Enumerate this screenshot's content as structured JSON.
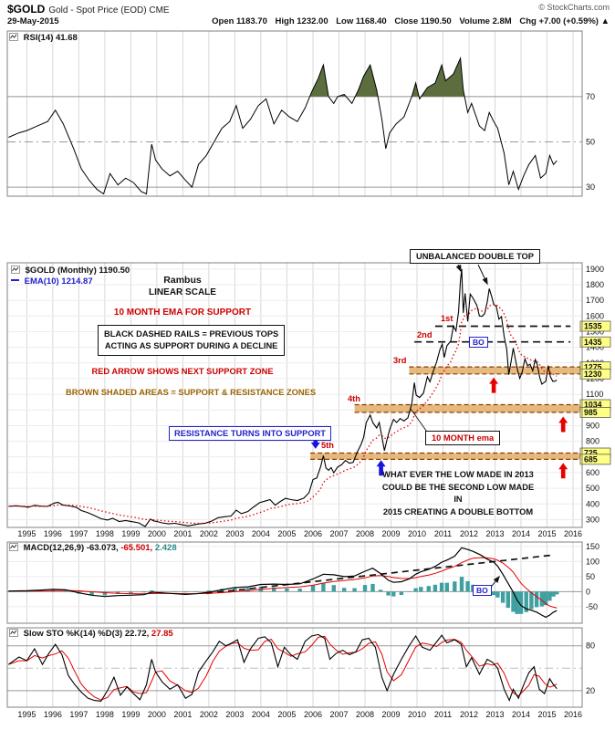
{
  "header": {
    "symbol": "$GOLD",
    "description": "Gold - Spot Price (EOD) CME",
    "copyright": "© StockCharts.com",
    "date": "29-May-2015",
    "quote": {
      "open_label": "Open",
      "open": "1183.70",
      "high_label": "High",
      "high": "1232.00",
      "low_label": "Low",
      "low": "1168.40",
      "close_label": "Close",
      "close": "1190.50",
      "volume_label": "Volume",
      "volume": "2.8M",
      "chg_label": "Chg",
      "chg": "+7.00 (+0.59%) ▲"
    }
  },
  "legends": {
    "rsi": "RSI(14) 41.68",
    "price_main": "$GOLD (Monthly) 1190.50",
    "price_ema": "EMA(10) 1214.87",
    "macd_label": "MACD(12,26,9)",
    "macd_value": "-63.073,",
    "macd_signal": "-65.501,",
    "macd_hist": "2.428",
    "sto_label": "Slow STO %K(14) %D(3)",
    "sto_k": "22.72,",
    "sto_d": "27.85"
  },
  "annotations": {
    "rambus": "Rambus",
    "linear_scale": "LINEAR SCALE",
    "ema_support": "10 MONTH EMA FOR SUPPORT",
    "rails_note_1": "BLACK DASHED RAILS = PREVIOUS TOPS",
    "rails_note_2": "ACTING AS SUPPORT DURING A DECLINE",
    "red_arrow_note": "RED ARROW SHOWS NEXT SUPPORT ZONE",
    "brown_note": "BROWN SHADED AREAS = SUPPORT & RESISTANCE ZONES",
    "double_top": "UNBALANCED DOUBLE TOP",
    "resistance_support": "RESISTANCE TURNS INTO SUPPORT",
    "ema_callout": "10 MONTH ema",
    "low_note_1": "WHAT EVER THE LOW MADE IN 2013",
    "low_note_2": "COULD BE THE SECOND LOW MADE IN",
    "low_note_3": "2015 CREATING A DOUBLE BOTTOM",
    "bo": "BO",
    "rail_labels": [
      "1st",
      "2nd",
      "3rd",
      "4th",
      "5th"
    ]
  },
  "colors": {
    "price_line": "#000000",
    "ema_line": "#e60000",
    "rsi_line": "#000000",
    "rsi_fill": "#5c6e3e",
    "macd_line": "#000000",
    "signal_line": "#e60000",
    "histogram": "#40a0a0",
    "zone_fill": "#e0a95e",
    "zone_border": "#8b3a00",
    "highlight_bg": "#ffff85",
    "annotation_red": "#cc0000",
    "annotation_blue": "#2222cc",
    "annotation_brown": "#9a6300"
  },
  "chart_data": {
    "x_axis": {
      "xlim": [
        1994.25,
        2016.35
      ],
      "years": [
        1995,
        1996,
        1997,
        1998,
        1999,
        2000,
        2001,
        2002,
        2003,
        2004,
        2005,
        2006,
        2007,
        2008,
        2009,
        2010,
        2011,
        2012,
        2013,
        2014,
        2015,
        2016
      ]
    },
    "rsi": {
      "type": "line",
      "label": "RSI(14)",
      "current": 41.68,
      "ylim": [
        26,
        99
      ],
      "yticks": [
        70,
        50,
        30
      ],
      "fill_above": 70,
      "x": [
        1994.3,
        1994.7,
        1995.0,
        1995.4,
        1995.8,
        1996.1,
        1996.4,
        1996.8,
        1997.1,
        1997.4,
        1997.7,
        1997.95,
        1998.2,
        1998.5,
        1998.8,
        1999.1,
        1999.4,
        1999.6,
        1999.8,
        1999.95,
        2000.2,
        2000.5,
        2000.8,
        2001.1,
        2001.35,
        2001.6,
        2001.9,
        2002.2,
        2002.5,
        2002.8,
        2003.05,
        2003.3,
        2003.6,
        2003.9,
        2004.2,
        2004.5,
        2004.8,
        2005.1,
        2005.4,
        2005.7,
        2005.95,
        2006.2,
        2006.4,
        2006.6,
        2006.8,
        2006.95,
        2007.2,
        2007.5,
        2007.75,
        2007.95,
        2008.2,
        2008.45,
        2008.65,
        2008.8,
        2008.95,
        2009.2,
        2009.5,
        2009.8,
        2009.95,
        2010.1,
        2010.4,
        2010.7,
        2010.95,
        2011.1,
        2011.4,
        2011.67,
        2011.78,
        2011.95,
        2012.1,
        2012.4,
        2012.6,
        2012.78,
        2012.95,
        2013.1,
        2013.35,
        2013.53,
        2013.7,
        2013.9,
        2014.1,
        2014.3,
        2014.55,
        2014.75,
        2014.95,
        2015.1,
        2015.25,
        2015.38
      ],
      "values": [
        52,
        54,
        55,
        57,
        59,
        64,
        58,
        47,
        38,
        33,
        29,
        27,
        36,
        31,
        34,
        32,
        28,
        27,
        49,
        42,
        38,
        35,
        37,
        33,
        30,
        40,
        44,
        50,
        56,
        59,
        66,
        56,
        60,
        66,
        69,
        58,
        64,
        61,
        59,
        65,
        72,
        78,
        84,
        70,
        67,
        70,
        71,
        67,
        73,
        79,
        84,
        73,
        60,
        47,
        54,
        58,
        61,
        70,
        76,
        69,
        74,
        76,
        84,
        77,
        80,
        87,
        73,
        63,
        67,
        57,
        55,
        63,
        59,
        56,
        45,
        31,
        37,
        29,
        35,
        40,
        44,
        34,
        36,
        44,
        40,
        41.68
      ]
    },
    "price": {
      "type": "line",
      "label": "$GOLD (Monthly)",
      "current": 1190.5,
      "ema_period": 10,
      "ylim": [
        250,
        1940
      ],
      "yticks": [
        1900,
        1800,
        1700,
        1600,
        1500,
        1400,
        1300,
        1200,
        1100,
        1000,
        900,
        800,
        700,
        600,
        500,
        400,
        300
      ],
      "highlight_labels": [
        1535,
        1435,
        1275,
        1230,
        1034,
        985,
        725,
        685
      ],
      "support_zones": [
        {
          "low": 1230,
          "high": 1275,
          "from_x": 2009.7
        },
        {
          "low": 985,
          "high": 1034,
          "from_x": 2007.6
        },
        {
          "low": 685,
          "high": 725,
          "from_x": 2005.9
        }
      ],
      "rails": [
        {
          "level": 1535,
          "from_x": 2010.7,
          "to_x": 2015.9
        },
        {
          "level": 1435,
          "from_x": 2009.9,
          "to_x": 2015.9
        }
      ],
      "x": [
        1994.3,
        1994.6,
        1994.9,
        1995.05,
        1995.3,
        1995.55,
        1995.8,
        1996.05,
        1996.2,
        1996.4,
        1996.65,
        1996.9,
        1997.1,
        1997.35,
        1997.6,
        1997.85,
        1998.1,
        1998.3,
        1998.55,
        1998.8,
        1999.05,
        1999.3,
        1999.55,
        1999.75,
        1999.87,
        2000.0,
        2000.2,
        2000.45,
        2000.7,
        2000.95,
        2001.2,
        2001.4,
        2001.6,
        2001.85,
        2002.1,
        2002.35,
        2002.6,
        2002.85,
        2003.05,
        2003.25,
        2003.5,
        2003.7,
        2003.95,
        2004.2,
        2004.35,
        2004.55,
        2004.75,
        2004.95,
        2005.15,
        2005.4,
        2005.65,
        2005.85,
        2006.0,
        2006.15,
        2006.3,
        2006.4,
        2006.5,
        2006.6,
        2006.7,
        2006.8,
        2006.95,
        2007.1,
        2007.25,
        2007.4,
        2007.55,
        2007.7,
        2007.85,
        2007.95,
        2008.05,
        2008.2,
        2008.3,
        2008.45,
        2008.55,
        2008.65,
        2008.75,
        2008.85,
        2008.95,
        2009.1,
        2009.22,
        2009.35,
        2009.5,
        2009.65,
        2009.8,
        2009.9,
        2009.97,
        2010.1,
        2010.25,
        2010.4,
        2010.5,
        2010.62,
        2010.75,
        2010.88,
        2010.97,
        2011.05,
        2011.15,
        2011.3,
        2011.4,
        2011.5,
        2011.6,
        2011.67,
        2011.72,
        2011.78,
        2011.85,
        2011.95,
        2012.05,
        2012.15,
        2012.3,
        2012.4,
        2012.5,
        2012.6,
        2012.7,
        2012.78,
        2012.88,
        2012.95,
        2013.05,
        2013.15,
        2013.25,
        2013.35,
        2013.45,
        2013.53,
        2013.62,
        2013.7,
        2013.78,
        2013.87,
        2013.95,
        2014.05,
        2014.15,
        2014.25,
        2014.35,
        2014.45,
        2014.55,
        2014.63,
        2014.72,
        2014.8,
        2014.88,
        2014.95,
        2015.05,
        2015.13,
        2015.22,
        2015.3,
        2015.38
      ],
      "close": [
        385,
        388,
        383,
        379,
        391,
        386,
        384,
        405,
        410,
        392,
        387,
        379,
        358,
        344,
        326,
        306,
        297,
        308,
        288,
        294,
        287,
        279,
        256,
        303,
        292,
        288,
        279,
        273,
        276,
        268,
        260,
        266,
        272,
        277,
        290,
        312,
        318,
        323,
        360,
        338,
        352,
        378,
        408,
        420,
        428,
        392,
        416,
        436,
        428,
        422,
        437,
        472,
        556,
        566,
        640,
        708,
        630,
        615,
        632,
        599,
        636,
        650,
        678,
        660,
        666,
        730,
        780,
        825,
        920,
        968,
        920,
        885,
        920,
        830,
        740,
        812,
        875,
        940,
        920,
        945,
        930,
        950,
        1040,
        1175,
        1095,
        1080,
        1108,
        1212,
        1180,
        1245,
        1305,
        1385,
        1420,
        1335,
        1410,
        1440,
        1535,
        1505,
        1630,
        1825,
        1900,
        1620,
        1745,
        1565,
        1740,
        1715,
        1670,
        1600,
        1598,
        1615,
        1690,
        1775,
        1720,
        1675,
        1662,
        1580,
        1597,
        1470,
        1390,
        1225,
        1312,
        1395,
        1327,
        1253,
        1202,
        1245,
        1327,
        1284,
        1292,
        1250,
        1322,
        1285,
        1208,
        1165,
        1175,
        1183,
        1283,
        1213,
        1183,
        1184,
        1190.5
      ]
    },
    "macd": {
      "type": "line",
      "macd_value": -63.073,
      "signal_value": -65.501,
      "hist_value": 2.428,
      "ylim": [
        -105,
        165
      ],
      "yticks": [
        150,
        100,
        50,
        0,
        -50
      ],
      "trendline": {
        "x1": 2001.9,
        "y1": -6,
        "x2": 2015.25,
        "y2": 122
      },
      "x": [
        1994.3,
        1995.0,
        1995.5,
        1996.0,
        1996.5,
        1997.0,
        1997.5,
        1998.0,
        1998.5,
        1999.0,
        1999.5,
        1999.8,
        2000.2,
        2000.7,
        2001.1,
        2001.5,
        2002.0,
        2002.5,
        2003.0,
        2003.5,
        2004.0,
        2004.5,
        2005.0,
        2005.5,
        2006.0,
        2006.4,
        2006.8,
        2007.2,
        2007.6,
        2008.0,
        2008.3,
        2008.6,
        2008.9,
        2009.1,
        2009.4,
        2009.7,
        2009.95,
        2010.15,
        2010.45,
        2010.7,
        2010.95,
        2011.15,
        2011.45,
        2011.72,
        2011.95,
        2012.15,
        2012.45,
        2012.7,
        2012.95,
        2013.1,
        2013.3,
        2013.5,
        2013.7,
        2013.85,
        2014.0,
        2014.2,
        2014.4,
        2014.6,
        2014.8,
        2014.95,
        2015.1,
        2015.25,
        2015.38
      ],
      "values": [
        2,
        3,
        5,
        8,
        6,
        -4,
        -12,
        -16,
        -13,
        -12,
        -10,
        -2,
        -4,
        -7,
        -9,
        -7,
        -2,
        6,
        14,
        16,
        24,
        25,
        24,
        26,
        42,
        58,
        56,
        50,
        52,
        68,
        78,
        60,
        38,
        31,
        33,
        42,
        58,
        66,
        74,
        84,
        98,
        105,
        118,
        146,
        140,
        134,
        122,
        108,
        98,
        85,
        58,
        28,
        -2,
        -28,
        -46,
        -57,
        -62,
        -68,
        -78,
        -85,
        -78,
        -68,
        -63.07
      ]
    },
    "sto": {
      "type": "line",
      "k_value": 22.72,
      "d_value": 27.85,
      "ylim": [
        -2,
        104
      ],
      "yticks": [
        80,
        20
      ],
      "x": [
        1994.3,
        1994.7,
        1995.0,
        1995.3,
        1995.6,
        1995.85,
        1996.1,
        1996.35,
        1996.6,
        1996.85,
        1997.1,
        1997.35,
        1997.6,
        1997.85,
        1998.1,
        1998.35,
        1998.6,
        1998.85,
        1999.1,
        1999.35,
        1999.6,
        1999.8,
        1999.95,
        2000.2,
        2000.5,
        2000.8,
        2001.1,
        2001.35,
        2001.6,
        2001.9,
        2002.15,
        2002.4,
        2002.65,
        2002.9,
        2003.1,
        2003.35,
        2003.6,
        2003.9,
        2004.15,
        2004.4,
        2004.65,
        2004.9,
        2005.15,
        2005.4,
        2005.7,
        2005.95,
        2006.2,
        2006.45,
        2006.65,
        2006.9,
        2007.15,
        2007.4,
        2007.65,
        2007.9,
        2008.15,
        2008.4,
        2008.65,
        2008.85,
        2009.1,
        2009.4,
        2009.7,
        2009.95,
        2010.2,
        2010.5,
        2010.75,
        2010.95,
        2011.15,
        2011.45,
        2011.7,
        2011.9,
        2012.1,
        2012.4,
        2012.7,
        2012.9,
        2013.1,
        2013.35,
        2013.55,
        2013.7,
        2013.9,
        2014.1,
        2014.3,
        2014.5,
        2014.7,
        2014.9,
        2015.1,
        2015.25,
        2015.38
      ],
      "k": [
        55,
        65,
        60,
        76,
        55,
        70,
        82,
        68,
        40,
        28,
        18,
        10,
        7,
        6,
        20,
        38,
        14,
        25,
        16,
        8,
        28,
        62,
        45,
        32,
        22,
        28,
        10,
        15,
        45,
        60,
        72,
        86,
        80,
        84,
        88,
        58,
        76,
        90,
        92,
        84,
        52,
        78,
        68,
        62,
        86,
        93,
        95,
        90,
        62,
        70,
        74,
        68,
        72,
        88,
        90,
        78,
        38,
        20,
        42,
        62,
        80,
        93,
        78,
        74,
        85,
        94,
        84,
        88,
        82,
        52,
        64,
        42,
        62,
        58,
        50,
        22,
        7,
        22,
        10,
        28,
        44,
        52,
        22,
        16,
        36,
        28,
        22.72
      ]
    },
    "arrows": [
      {
        "panel": "price",
        "x": 2006.1,
        "tip": 752,
        "dir": "down",
        "color": "#1515dd"
      },
      {
        "panel": "price",
        "x": 2008.62,
        "tip": 680,
        "dir": "up",
        "color": "#1515dd"
      },
      {
        "panel": "price",
        "x": 2012.95,
        "tip": 1208,
        "dir": "up",
        "color": "#e60000"
      },
      {
        "panel": "price",
        "x": 2015.62,
        "tip": 958,
        "dir": "up",
        "color": "#e60000"
      },
      {
        "panel": "price",
        "x": 2015.62,
        "tip": 662,
        "dir": "up",
        "color": "#e60000"
      }
    ]
  }
}
